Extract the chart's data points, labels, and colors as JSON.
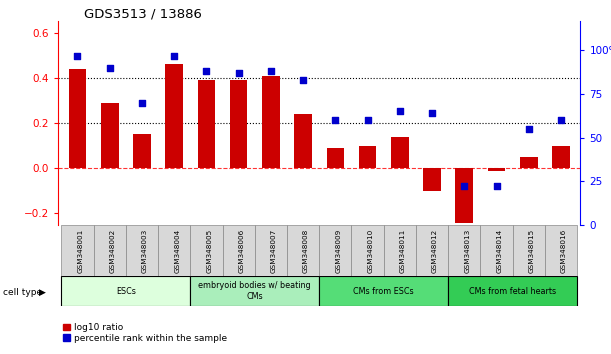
{
  "title": "GDS3513 / 13886",
  "samples": [
    "GSM348001",
    "GSM348002",
    "GSM348003",
    "GSM348004",
    "GSM348005",
    "GSM348006",
    "GSM348007",
    "GSM348008",
    "GSM348009",
    "GSM348010",
    "GSM348011",
    "GSM348012",
    "GSM348013",
    "GSM348014",
    "GSM348015",
    "GSM348016"
  ],
  "log10_ratio": [
    0.44,
    0.29,
    0.15,
    0.46,
    0.39,
    0.39,
    0.41,
    0.24,
    0.09,
    0.1,
    0.14,
    -0.1,
    -0.24,
    -0.01,
    0.05,
    0.1
  ],
  "percentile_rank": [
    97,
    90,
    70,
    97,
    88,
    87,
    88,
    83,
    60,
    60,
    65,
    64,
    22,
    22,
    55,
    60
  ],
  "bar_color": "#cc0000",
  "dot_color": "#0000cc",
  "ylim_left": [
    -0.25,
    0.65
  ],
  "ylim_right": [
    0,
    116.67
  ],
  "yticks_left": [
    -0.2,
    0.0,
    0.2,
    0.4,
    0.6
  ],
  "yticks_right": [
    0,
    25,
    50,
    75,
    100
  ],
  "ytick_labels_right": [
    "0",
    "25",
    "50",
    "75",
    "100%"
  ],
  "hlines": [
    0.2,
    0.4
  ],
  "cell_type_groups": [
    {
      "label": "ESCs",
      "start": 0,
      "end": 3,
      "color": "#ddffdd"
    },
    {
      "label": "embryoid bodies w/ beating\nCMs",
      "start": 4,
      "end": 7,
      "color": "#aaeebb"
    },
    {
      "label": "CMs from ESCs",
      "start": 8,
      "end": 11,
      "color": "#55dd77"
    },
    {
      "label": "CMs from fetal hearts",
      "start": 12,
      "end": 15,
      "color": "#33cc55"
    }
  ],
  "legend_items": [
    {
      "label": "log10 ratio",
      "color": "#cc0000"
    },
    {
      "label": "percentile rank within the sample",
      "color": "#0000cc"
    }
  ],
  "cell_type_label": "cell type"
}
